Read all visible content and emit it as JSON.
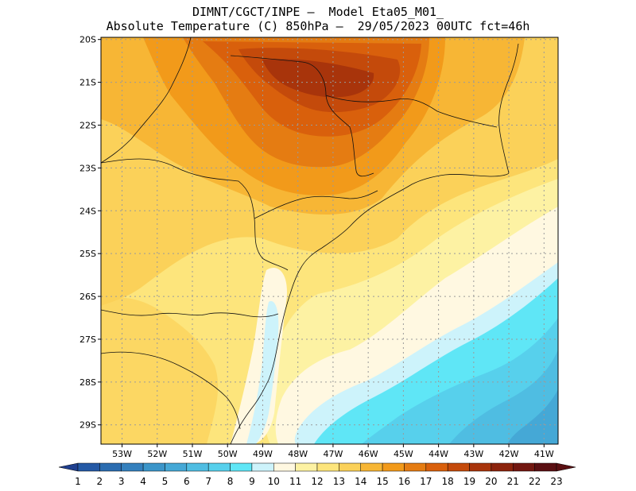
{
  "title": {
    "line1": "DIMNT/CGCT/INPE –  Model Eta05_M01_",
    "line2": "Absolute Temperature (C) 850hPa –  29/05/2023 00UTC fct=46h"
  },
  "chart_data": {
    "type": "heatmap",
    "x_ticks": [
      "53W",
      "52W",
      "51W",
      "50W",
      "49W",
      "48W",
      "47W",
      "46W",
      "45W",
      "44W",
      "43W",
      "42W",
      "41W"
    ],
    "y_ticks": [
      "20S",
      "21S",
      "22S",
      "23S",
      "24S",
      "25S",
      "26S",
      "27S",
      "28S",
      "29S"
    ],
    "lon_range": [
      -53.6,
      -40.6
    ],
    "lat_range": [
      -29.45,
      -19.95
    ],
    "grid": true,
    "colorbar": {
      "labels": [
        "1",
        "2",
        "3",
        "4",
        "5",
        "6",
        "7",
        "8",
        "9",
        "10",
        "11",
        "12",
        "13",
        "14",
        "15",
        "16",
        "17",
        "18",
        "19",
        "20",
        "21",
        "22",
        "23"
      ],
      "colors": [
        "#1f3f8f",
        "#2459a5",
        "#2b6cb0",
        "#3480bd",
        "#3b95c9",
        "#45a8d6",
        "#4fbde2",
        "#57d0ec",
        "#5fe6f6",
        "#cdf3fb",
        "#fff8e1",
        "#fdf2a3",
        "#fde57c",
        "#fbd159",
        "#f7b635",
        "#f29a1a",
        "#e57c12",
        "#d9600c",
        "#c44a0b",
        "#a8340b",
        "#8c230c",
        "#721710",
        "#5a0f12"
      ],
      "arrow_left_color": "#1f3f8f",
      "arrow_right_color": "#5a0f12"
    }
  }
}
